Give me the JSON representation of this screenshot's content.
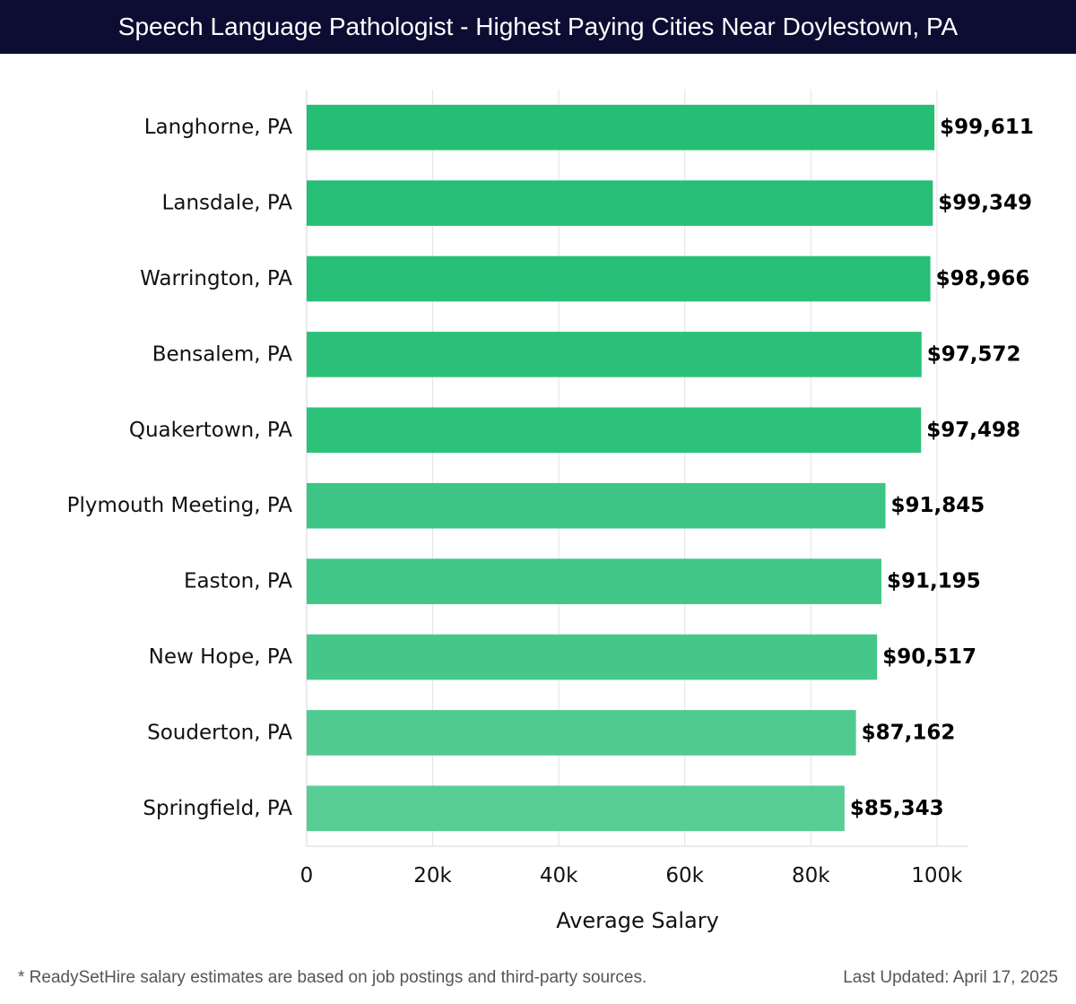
{
  "header": {
    "title": "Speech Language Pathologist - Highest Paying Cities Near Doylestown, PA"
  },
  "chart_data": {
    "type": "bar",
    "orientation": "horizontal",
    "categories": [
      "Langhorne, PA",
      "Lansdale, PA",
      "Warrington, PA",
      "Bensalem, PA",
      "Quakertown, PA",
      "Plymouth Meeting, PA",
      "Easton, PA",
      "New Hope, PA",
      "Souderton, PA",
      "Springfield, PA"
    ],
    "values": [
      99611,
      99349,
      98966,
      97572,
      97498,
      91845,
      91195,
      90517,
      87162,
      85343
    ],
    "value_labels": [
      "$99,611",
      "$99,349",
      "$98,966",
      "$97,572",
      "$97,498",
      "$91,845",
      "$91,195",
      "$90,517",
      "$87,162",
      "$85,343"
    ],
    "bar_colors": [
      "#26bd74",
      "#27be75",
      "#28bf76",
      "#2cc17a",
      "#2dc27a",
      "#3cc584",
      "#40c686",
      "#45c78a",
      "#50ca90",
      "#58cd95"
    ],
    "xlabel": "Average Salary",
    "ylabel": "",
    "xlim": [
      0,
      105000
    ],
    "xticks": [
      0,
      20000,
      40000,
      60000,
      80000,
      100000
    ],
    "xtick_labels": [
      "0",
      "20k",
      "40k",
      "60k",
      "80k",
      "100k"
    ],
    "grid": true
  },
  "footer": {
    "note": "* ReadySetHire salary estimates are based on job postings and third-party sources.",
    "updated": "Last Updated: April 17, 2025"
  }
}
